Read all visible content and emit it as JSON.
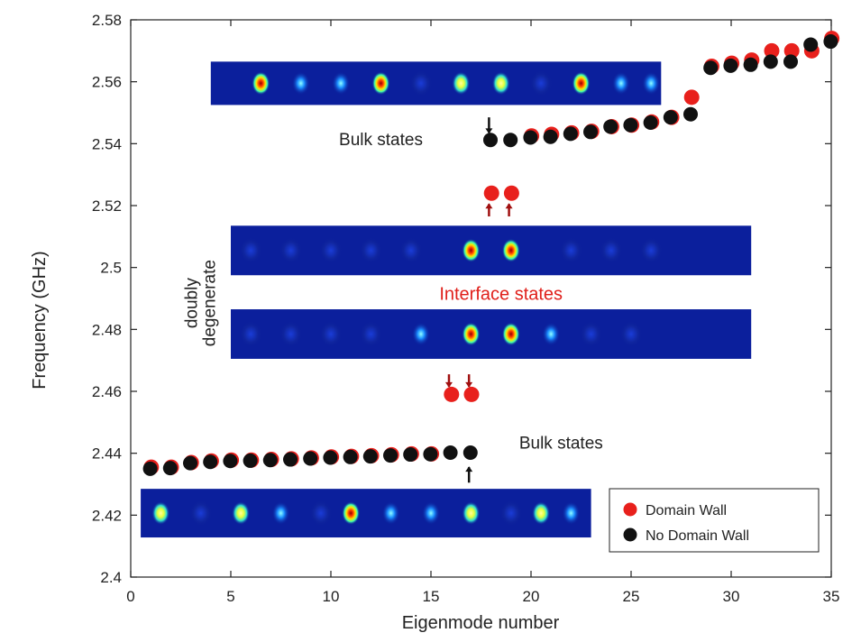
{
  "chart_data": {
    "type": "scatter",
    "xlabel": "Eigenmode number",
    "ylabel": "Frequency (GHz)",
    "xlim": [
      0,
      35
    ],
    "ylim": [
      2.4,
      2.58
    ],
    "xticks": [
      "0",
      "5",
      "10",
      "15",
      "20",
      "25",
      "30",
      "35"
    ],
    "yticks": [
      "2.4",
      "2.42",
      "2.44",
      "2.46",
      "2.48",
      "2.5",
      "2.52",
      "2.54",
      "2.56",
      "2.58"
    ],
    "grid": false,
    "legend_position": "bottom-right",
    "series": [
      {
        "name": "Domain Wall",
        "color": "#e8201c",
        "x": [
          1,
          2,
          3,
          4,
          5,
          6,
          7,
          8,
          9,
          10,
          11,
          12,
          13,
          14,
          15,
          16,
          17,
          18,
          19,
          20,
          21,
          22,
          23,
          24,
          25,
          26,
          27,
          28,
          29,
          30,
          31,
          32,
          33,
          34,
          35
        ],
        "y": [
          2.4355,
          2.4355,
          2.437,
          2.4375,
          2.4378,
          2.4378,
          2.438,
          2.4382,
          2.4385,
          2.4388,
          2.439,
          2.4392,
          2.4395,
          2.4398,
          2.4398,
          2.459,
          2.459,
          2.524,
          2.524,
          2.5425,
          2.543,
          2.5435,
          2.544,
          2.5455,
          2.546,
          2.547,
          2.5485,
          2.555,
          2.565,
          2.566,
          2.567,
          2.57,
          2.57,
          2.57,
          2.574
        ]
      },
      {
        "name": "No Domain Wall",
        "color": "#111111",
        "x": [
          1,
          2,
          3,
          4,
          5,
          6,
          7,
          8,
          9,
          10,
          11,
          12,
          13,
          14,
          15,
          16,
          17,
          18,
          19,
          20,
          21,
          22,
          23,
          24,
          25,
          26,
          27,
          28,
          29,
          30,
          31,
          32,
          33,
          34,
          35
        ],
        "y": [
          2.435,
          2.4352,
          2.4368,
          2.4372,
          2.4375,
          2.4376,
          2.4378,
          2.438,
          2.4383,
          2.4386,
          2.4388,
          2.439,
          2.4393,
          2.4396,
          2.4397,
          2.4402,
          2.4402,
          2.5412,
          2.5412,
          2.542,
          2.5422,
          2.5432,
          2.5438,
          2.5455,
          2.546,
          2.5468,
          2.5485,
          2.5495,
          2.5645,
          2.5652,
          2.5655,
          2.5665,
          2.5665,
          2.572,
          2.573
        ]
      }
    ],
    "annotations": [
      {
        "text": "Bulk states",
        "color": "#222222",
        "x": 12.5,
        "y": 2.5395
      },
      {
        "text": "Bulk states",
        "color": "#222222",
        "x": 21.5,
        "y": 2.4415
      },
      {
        "text": "Interface states",
        "color": "#e0201b",
        "x": 18.5,
        "y": 2.4895
      },
      {
        "text": "doubly degenerate",
        "color": "#222222",
        "x": 3.5,
        "y": 2.4885,
        "rotation": -90
      }
    ],
    "mode_profiles": [
      {
        "x_range": [
          4,
          26.5
        ],
        "y_range": [
          2.5525,
          2.5665
        ],
        "spots": [
          [
            6.5,
            "hot"
          ],
          [
            8.5,
            "cold"
          ],
          [
            10.5,
            "cold"
          ],
          [
            12.5,
            "hot"
          ],
          [
            14.5,
            "faint"
          ],
          [
            16.5,
            "warm"
          ],
          [
            18.5,
            "warm"
          ],
          [
            20.5,
            "faint"
          ],
          [
            22.5,
            "hot"
          ],
          [
            24.5,
            "cold"
          ],
          [
            26,
            "cold"
          ]
        ]
      },
      {
        "x_range": [
          5,
          31
        ],
        "y_range": [
          2.4975,
          2.5135
        ],
        "spots": [
          [
            6,
            "faint"
          ],
          [
            8,
            "faint"
          ],
          [
            10,
            "faint"
          ],
          [
            12,
            "faint"
          ],
          [
            14,
            "faint"
          ],
          [
            17,
            "hot"
          ],
          [
            19,
            "hot"
          ],
          [
            22,
            "faint"
          ],
          [
            24,
            "faint"
          ],
          [
            26,
            "faint"
          ]
        ]
      },
      {
        "x_range": [
          5,
          31
        ],
        "y_range": [
          2.4705,
          2.4865
        ],
        "spots": [
          [
            6,
            "faint"
          ],
          [
            8,
            "faint"
          ],
          [
            10,
            "faint"
          ],
          [
            12,
            "faint"
          ],
          [
            14.5,
            "cold"
          ],
          [
            17,
            "hot"
          ],
          [
            19,
            "hot"
          ],
          [
            21,
            "cold"
          ],
          [
            23,
            "faint"
          ],
          [
            25,
            "faint"
          ]
        ]
      },
      {
        "x_range": [
          0.5,
          23
        ],
        "y_range": [
          2.4128,
          2.4285
        ],
        "spots": [
          [
            1.5,
            "warm"
          ],
          [
            3.5,
            "faint"
          ],
          [
            5.5,
            "warm"
          ],
          [
            7.5,
            "cold"
          ],
          [
            9.5,
            "faint"
          ],
          [
            11,
            "hot"
          ],
          [
            13,
            "cold"
          ],
          [
            15,
            "cold"
          ],
          [
            17,
            "warm"
          ],
          [
            19,
            "faint"
          ],
          [
            20.5,
            "warm"
          ],
          [
            22,
            "cold"
          ]
        ]
      }
    ],
    "arrows": [
      {
        "x": 17.9,
        "from_y": 2.5485,
        "to_y": 2.5435
      },
      {
        "x": 17.9,
        "from_y": 2.5165,
        "to_y": 2.5205
      },
      {
        "x": 18.9,
        "from_y": 2.5165,
        "to_y": 2.5205
      },
      {
        "x": 15.9,
        "from_y": 2.4655,
        "to_y": 2.4615
      },
      {
        "x": 16.9,
        "from_y": 2.4655,
        "to_y": 2.4615
      },
      {
        "x": 16.9,
        "from_y": 2.4305,
        "to_y": 2.4355
      }
    ]
  }
}
